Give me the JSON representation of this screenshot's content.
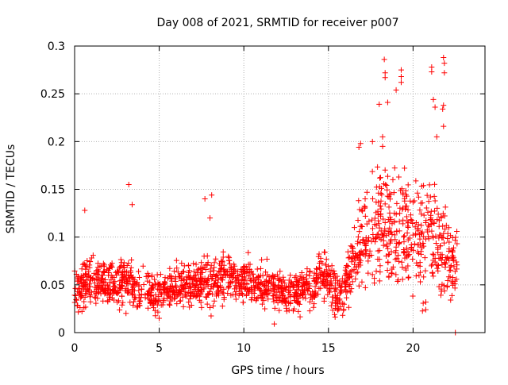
{
  "chart_data": {
    "type": "scatter",
    "title": "Day 008 of 2021, SRMTID for receiver p007",
    "xlabel": "GPS time / hours",
    "ylabel": "SRMTID / TECUs",
    "xlim": [
      0,
      24.25
    ],
    "ylim": [
      0,
      0.3
    ],
    "x_ticks": [
      0,
      5,
      10,
      15,
      20
    ],
    "x_tick_labels": [
      "0",
      "5",
      "10",
      "15",
      "20"
    ],
    "y_ticks": [
      0,
      0.05,
      0.1,
      0.15,
      0.2,
      0.25,
      0.3
    ],
    "y_tick_labels": [
      "0",
      "0.05",
      "0.1",
      "0.15",
      "0.2",
      "0.25",
      "0.3"
    ],
    "grid": true,
    "marker": "+",
    "point_color": "#ff0000",
    "series": [
      {
        "name": "p007",
        "envelope": [
          {
            "x": 0.0,
            "mean": 0.045,
            "spread": 0.02
          },
          {
            "x": 1.0,
            "mean": 0.055,
            "spread": 0.022
          },
          {
            "x": 2.0,
            "mean": 0.05,
            "spread": 0.02
          },
          {
            "x": 3.0,
            "mean": 0.052,
            "spread": 0.022
          },
          {
            "x": 4.0,
            "mean": 0.045,
            "spread": 0.02
          },
          {
            "x": 5.0,
            "mean": 0.04,
            "spread": 0.018
          },
          {
            "x": 6.0,
            "mean": 0.05,
            "spread": 0.02
          },
          {
            "x": 7.0,
            "mean": 0.05,
            "spread": 0.022
          },
          {
            "x": 8.0,
            "mean": 0.055,
            "spread": 0.024
          },
          {
            "x": 9.0,
            "mean": 0.06,
            "spread": 0.022
          },
          {
            "x": 10.0,
            "mean": 0.055,
            "spread": 0.02
          },
          {
            "x": 11.0,
            "mean": 0.05,
            "spread": 0.02
          },
          {
            "x": 12.0,
            "mean": 0.045,
            "spread": 0.018
          },
          {
            "x": 13.0,
            "mean": 0.04,
            "spread": 0.018
          },
          {
            "x": 14.0,
            "mean": 0.05,
            "spread": 0.02
          },
          {
            "x": 15.0,
            "mean": 0.06,
            "spread": 0.025
          },
          {
            "x": 15.5,
            "mean": 0.04,
            "spread": 0.02
          },
          {
            "x": 16.0,
            "mean": 0.05,
            "spread": 0.022
          },
          {
            "x": 16.5,
            "mean": 0.075,
            "spread": 0.025
          },
          {
            "x": 17.0,
            "mean": 0.1,
            "spread": 0.04
          },
          {
            "x": 18.0,
            "mean": 0.11,
            "spread": 0.055
          },
          {
            "x": 19.0,
            "mean": 0.11,
            "spread": 0.06
          },
          {
            "x": 20.0,
            "mean": 0.1,
            "spread": 0.05
          },
          {
            "x": 21.0,
            "mean": 0.1,
            "spread": 0.06
          },
          {
            "x": 22.0,
            "mean": 0.08,
            "spread": 0.045
          },
          {
            "x": 22.6,
            "mean": 0.07,
            "spread": 0.03
          }
        ],
        "n_points": 1800,
        "highlight_points": [
          {
            "x": 0.6,
            "y": 0.128
          },
          {
            "x": 3.2,
            "y": 0.155
          },
          {
            "x": 3.4,
            "y": 0.134
          },
          {
            "x": 7.7,
            "y": 0.14
          },
          {
            "x": 8.1,
            "y": 0.144
          },
          {
            "x": 8.0,
            "y": 0.12
          },
          {
            "x": 11.8,
            "y": 0.009
          },
          {
            "x": 18.0,
            "y": 0.239
          },
          {
            "x": 18.3,
            "y": 0.286
          },
          {
            "x": 18.35,
            "y": 0.272
          },
          {
            "x": 18.35,
            "y": 0.267
          },
          {
            "x": 18.5,
            "y": 0.241
          },
          {
            "x": 18.2,
            "y": 0.205
          },
          {
            "x": 18.2,
            "y": 0.195
          },
          {
            "x": 19.0,
            "y": 0.254
          },
          {
            "x": 19.3,
            "y": 0.275
          },
          {
            "x": 19.3,
            "y": 0.268
          },
          {
            "x": 19.3,
            "y": 0.262
          },
          {
            "x": 21.1,
            "y": 0.278
          },
          {
            "x": 21.1,
            "y": 0.273
          },
          {
            "x": 21.2,
            "y": 0.244
          },
          {
            "x": 21.3,
            "y": 0.236
          },
          {
            "x": 21.4,
            "y": 0.205
          },
          {
            "x": 21.8,
            "y": 0.288
          },
          {
            "x": 21.85,
            "y": 0.282
          },
          {
            "x": 21.85,
            "y": 0.272
          },
          {
            "x": 21.8,
            "y": 0.238
          },
          {
            "x": 21.75,
            "y": 0.234
          },
          {
            "x": 21.8,
            "y": 0.216
          },
          {
            "x": 16.9,
            "y": 0.198
          },
          {
            "x": 16.8,
            "y": 0.194
          },
          {
            "x": 17.6,
            "y": 0.2
          },
          {
            "x": 22.5,
            "y": 0.0
          }
        ]
      }
    ]
  }
}
